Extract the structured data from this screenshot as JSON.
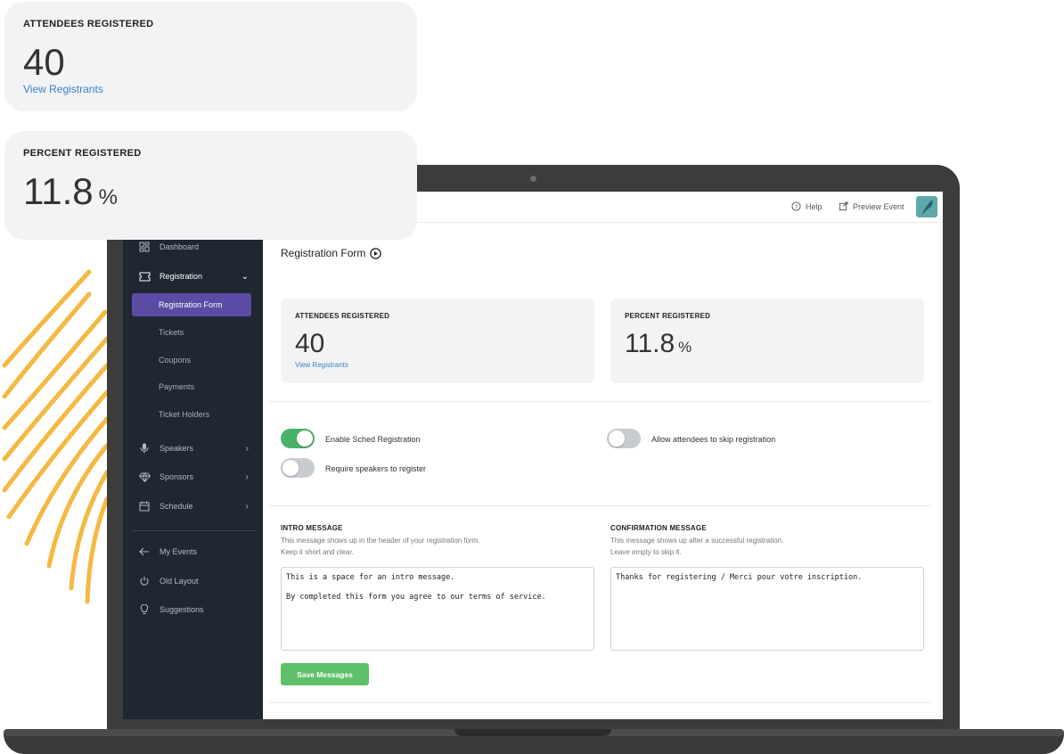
{
  "topbar": {
    "help": "Help",
    "preview_event": "Preview Event"
  },
  "sidebar": {
    "dashboard": "Dashboard",
    "registration": "Registration",
    "sub_items": [
      "Registration Form",
      "Tickets",
      "Coupons",
      "Payments",
      "Ticket Holders"
    ],
    "speakers": "Speakers",
    "sponsors": "Sponsors",
    "schedule": "Schedule",
    "my_events": "My Events",
    "old_layout": "Old Layout",
    "suggestions": "Suggestions"
  },
  "main": {
    "title": "Registration Form",
    "attendees": {
      "label": "ATTENDEES REGISTERED",
      "value": "40",
      "link": "View Registrants"
    },
    "percent": {
      "label": "PERCENT REGISTERED",
      "value": "11.8",
      "unit": "%"
    },
    "toggles": {
      "enable_sched": {
        "label": "Enable Sched Registration",
        "on": true
      },
      "require_speakers": {
        "label": "Require speakers to register",
        "on": false
      },
      "allow_skip": {
        "label": "Allow attendees to skip registration",
        "on": false
      }
    },
    "intro": {
      "title": "INTRO MESSAGE",
      "desc1": "This message shows up in the header of your registration form.",
      "desc2": "Keep it short and clear.",
      "value": "This is a space for an intro message.\n\nBy completed this form you agree to our terms of service."
    },
    "confirmation": {
      "title": "CONFIRMATION MESSAGE",
      "desc1": "This message shows up after a successful registration.",
      "desc2": "Leave empty to skip it.",
      "value": "Thanks for registering / Merci pour votre inscription."
    },
    "save_label": "Save Messages"
  },
  "floating": {
    "attendees": {
      "label": "ATTENDEES REGISTERED",
      "value": "40",
      "link": "View Registrants"
    },
    "percent": {
      "label": "PERCENT REGISTERED",
      "value": "11.8",
      "unit": "%"
    }
  },
  "colors": {
    "accent_purple": "#5b4ba5",
    "toggle_green": "#49b26a",
    "save_green": "#5fc06a",
    "sidebar_bg": "#1f2733",
    "arc_yellow": "#f5b942"
  }
}
